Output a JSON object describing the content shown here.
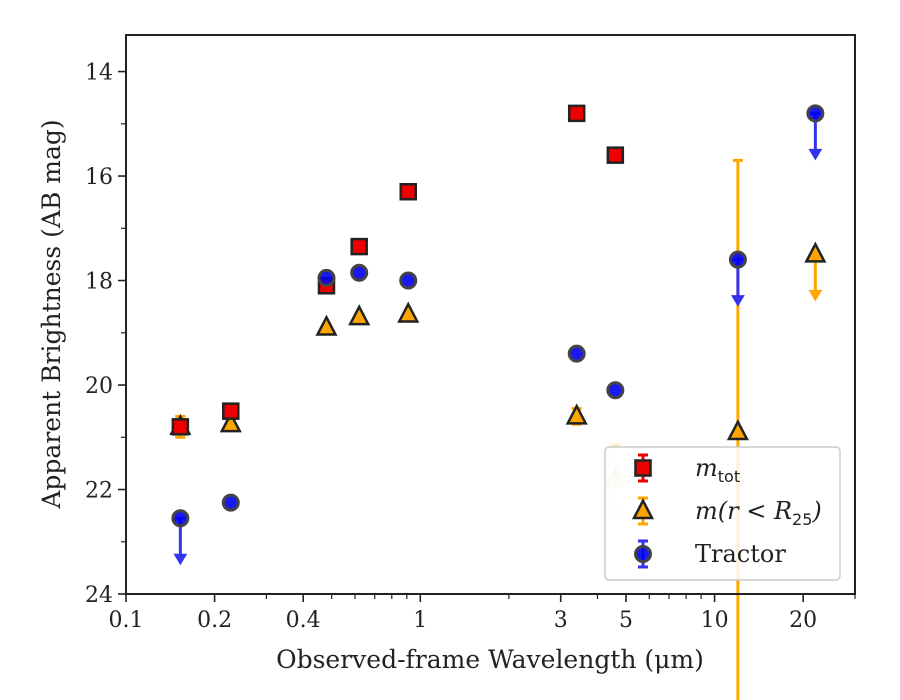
{
  "chart_data": {
    "type": "scatter",
    "title": "",
    "xlabel": "Observed-frame Wavelength (μm)",
    "ylabel": "Apparent Brightness (AB mag)",
    "x_scale": "log",
    "xlim": [
      0.1,
      30
    ],
    "ylim": [
      24,
      13.3
    ],
    "y_inverted": true,
    "x_ticks": [
      0.1,
      0.2,
      0.4,
      1,
      3,
      5,
      10,
      20
    ],
    "x_tick_labels": [
      "0.1",
      "0.2",
      "0.4",
      "1",
      "3",
      "5",
      "10",
      "20"
    ],
    "y_ticks": [
      14,
      16,
      18,
      20,
      22,
      24
    ],
    "y_tick_labels": [
      "14",
      "16",
      "18",
      "20",
      "22",
      "24"
    ],
    "grid": false,
    "legend_position": "lower-right",
    "colors": {
      "mtot": "#ee0000",
      "m25": "#ffa500",
      "tractor": "#0000ee",
      "tractor_arrow": "#3333ee",
      "edge": "#222222"
    },
    "series": [
      {
        "id": "mtot",
        "name": "m_tot",
        "marker": "square",
        "points": [
          {
            "x": 0.153,
            "y": 20.8
          },
          {
            "x": 0.227,
            "y": 20.5
          },
          {
            "x": 0.48,
            "y": 18.1
          },
          {
            "x": 0.62,
            "y": 17.35
          },
          {
            "x": 0.91,
            "y": 16.3
          },
          {
            "x": 3.4,
            "y": 14.8
          },
          {
            "x": 4.6,
            "y": 15.6
          }
        ]
      },
      {
        "id": "m25",
        "name": "m(r < R_25)",
        "marker": "triangle",
        "points": [
          {
            "x": 0.153,
            "y": 20.8,
            "err": 0.2
          },
          {
            "x": 0.227,
            "y": 20.75
          },
          {
            "x": 0.48,
            "y": 18.9
          },
          {
            "x": 0.62,
            "y": 18.7
          },
          {
            "x": 0.91,
            "y": 18.65
          },
          {
            "x": 3.4,
            "y": 20.6,
            "err": 0.15
          },
          {
            "x": 4.6,
            "y": 21.8,
            "err": 0.65,
            "faded": true
          },
          {
            "x": 12.0,
            "y": 20.9,
            "err": 5.2
          },
          {
            "x": 22.0,
            "y": 17.5,
            "upper_limit": true
          }
        ]
      },
      {
        "id": "tractor",
        "name": "Tractor",
        "marker": "circle",
        "points": [
          {
            "x": 0.153,
            "y": 22.55,
            "upper_limit": true
          },
          {
            "x": 0.227,
            "y": 22.25
          },
          {
            "x": 0.48,
            "y": 17.95
          },
          {
            "x": 0.62,
            "y": 17.85
          },
          {
            "x": 0.91,
            "y": 18.0
          },
          {
            "x": 3.4,
            "y": 19.4
          },
          {
            "x": 4.6,
            "y": 20.1
          },
          {
            "x": 12.0,
            "y": 17.6,
            "upper_limit": true
          },
          {
            "x": 22.0,
            "y": 14.8,
            "upper_limit": true
          }
        ]
      }
    ],
    "legend": [
      {
        "series": "mtot",
        "label": "m",
        "sub": "tot"
      },
      {
        "series": "m25",
        "label": "m(r < R",
        "sub": "25",
        "after": ")"
      },
      {
        "series": "tractor",
        "label": "Tractor"
      }
    ]
  }
}
